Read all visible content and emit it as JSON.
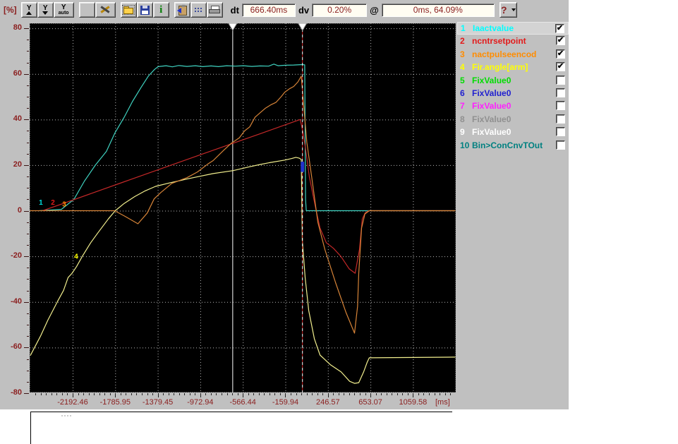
{
  "toolbar": {
    "y_unit_label": "[%]",
    "y_auto_text": "auto",
    "y_letter": "Y",
    "info_glyph": "i",
    "dt_label": "dt",
    "dt_value": "666.40ms",
    "dv_label": "dv",
    "dv_value": "0.20%",
    "at_label": "@",
    "at_value": "0ms, 64.09%",
    "help_glyph": "?"
  },
  "legend": {
    "rows": [
      {
        "num": "1",
        "label": "Iaactvalue",
        "color": "#00ffff",
        "checked": true,
        "selected": true
      },
      {
        "num": "2",
        "label": "ncntrsetpoint",
        "color": "#e31a1a",
        "checked": true,
        "selected": false
      },
      {
        "num": "3",
        "label": "nactpulseencod",
        "color": "#ff8c00",
        "checked": true,
        "selected": false
      },
      {
        "num": "4",
        "label": "Fir.angle[arm]",
        "color": "#ffff00",
        "checked": true,
        "selected": false
      },
      {
        "num": "5",
        "label": "FixValue0",
        "color": "#00dd00",
        "checked": false,
        "selected": false
      },
      {
        "num": "6",
        "label": "FixValue0",
        "color": "#2020d0",
        "checked": false,
        "selected": false
      },
      {
        "num": "7",
        "label": "FixValue0",
        "color": "#ff20ff",
        "checked": false,
        "selected": false
      },
      {
        "num": "8",
        "label": "FixValue0",
        "color": "#909090",
        "checked": false,
        "selected": false
      },
      {
        "num": "9",
        "label": "FixValue0",
        "color": "#ffffff",
        "checked": false,
        "selected": false
      },
      {
        "num": "10",
        "label": "Bin>ConCnvTOut",
        "color": "#008080",
        "checked": false,
        "selected": false
      }
    ]
  },
  "chart_data": {
    "type": "line",
    "x_unit": "[ms]",
    "y_unit": "[%]",
    "xlim": [
      -2603.6,
      1468.2
    ],
    "ylim": [
      -79.7,
      82.2
    ],
    "grid": true,
    "xticks": [
      {
        "t": -2192.46,
        "label": "-2192.46"
      },
      {
        "t": -1785.95,
        "label": "-1785.95"
      },
      {
        "t": -1379.45,
        "label": "-1379.45"
      },
      {
        "t": -972.94,
        "label": "-972.94"
      },
      {
        "t": -566.44,
        "label": "-566.44"
      },
      {
        "t": -159.94,
        "label": "-159.94"
      },
      {
        "t": 246.57,
        "label": "246.57"
      },
      {
        "t": 653.07,
        "label": "653.07"
      },
      {
        "t": 1059.58,
        "label": "1059.58"
      }
    ],
    "yticks": [
      80,
      60,
      40,
      20,
      0,
      -20,
      -40,
      -60,
      -80
    ],
    "minor_x_step": 50.813,
    "minor_y_step": 5,
    "cursors": [
      {
        "t": -666.4,
        "type": "solid"
      },
      {
        "t": 0,
        "type": "dashed",
        "marker": {
          "v_top": 21.5,
          "v_bottom": 17,
          "color": "#2233cc"
        }
      }
    ],
    "cursor_readouts": {
      "dt": "666.40ms",
      "dv": "0.20%",
      "at": "0ms, 64.09%"
    },
    "markers": [
      {
        "label": "1",
        "color": "#00e0e0",
        "t": -2496,
        "v": 2.6
      },
      {
        "label": "2",
        "color": "#e31a1a",
        "t": -2381,
        "v": 2.6
      },
      {
        "label": "3",
        "color": "#ff8c00",
        "t": -2273,
        "v": 1.8
      },
      {
        "label": "4",
        "color": "#ffff00",
        "t": -2159,
        "v": -21
      }
    ],
    "series": [
      {
        "name": "Iaactvalue",
        "color": "#3fd2c0",
        "points": [
          [
            -2512,
            0
          ],
          [
            -2300,
            0.6
          ],
          [
            -2180,
            5
          ],
          [
            -2080,
            13
          ],
          [
            -1975,
            20
          ],
          [
            -1870,
            26
          ],
          [
            -1790,
            34
          ],
          [
            -1700,
            41
          ],
          [
            -1620,
            48
          ],
          [
            -1540,
            54
          ],
          [
            -1470,
            59
          ],
          [
            -1410,
            62
          ],
          [
            -1375,
            63.2
          ],
          [
            -1300,
            63.6
          ],
          [
            -1240,
            63.1
          ],
          [
            -1180,
            63.7
          ],
          [
            -1100,
            63.3
          ],
          [
            -1020,
            63.6
          ],
          [
            -950,
            63.2
          ],
          [
            -870,
            63.5
          ],
          [
            -800,
            63.2
          ],
          [
            -720,
            63.6
          ],
          [
            -640,
            63.4
          ],
          [
            -560,
            63.6
          ],
          [
            -480,
            63.3
          ],
          [
            -400,
            63.5
          ],
          [
            -320,
            63.4
          ],
          [
            -270,
            64.3
          ],
          [
            -230,
            63.6
          ],
          [
            -160,
            63.8
          ],
          [
            -80,
            63.9
          ],
          [
            0,
            64.1
          ],
          [
            25,
            64
          ],
          [
            33,
            5
          ],
          [
            40,
            0
          ],
          [
            1465,
            0
          ]
        ]
      },
      {
        "name": "Fir.angle[arm]",
        "color": "#f2ef8e",
        "points": [
          [
            -2597,
            -63.5
          ],
          [
            -2500,
            -55
          ],
          [
            -2430,
            -48
          ],
          [
            -2337,
            -39.8
          ],
          [
            -2280,
            -35
          ],
          [
            -2236,
            -29.3
          ],
          [
            -2200,
            -27.5
          ],
          [
            -2155,
            -24.5
          ],
          [
            -2100,
            -20
          ],
          [
            -2020,
            -14
          ],
          [
            -1953,
            -9.8
          ],
          [
            -1850,
            -3.5
          ],
          [
            -1785,
            0
          ],
          [
            -1700,
            3.2
          ],
          [
            -1600,
            6.2
          ],
          [
            -1500,
            8.7
          ],
          [
            -1400,
            10.7
          ],
          [
            -1265,
            12.2
          ],
          [
            -1100,
            13.9
          ],
          [
            -1000,
            14.9
          ],
          [
            -850,
            16.3
          ],
          [
            -659,
            17.6
          ],
          [
            -500,
            19.3
          ],
          [
            -400,
            20.3
          ],
          [
            -300,
            21.2
          ],
          [
            -166,
            22.2
          ],
          [
            -100,
            22.9
          ],
          [
            -60,
            23.4
          ],
          [
            -30,
            23.1
          ],
          [
            -8,
            22.5
          ],
          [
            2,
            -13
          ],
          [
            29,
            -29.2
          ],
          [
            63,
            -43.8
          ],
          [
            117,
            -56.2
          ],
          [
            171,
            -63.3
          ],
          [
            272,
            -67.6
          ],
          [
            373,
            -70.7
          ],
          [
            454,
            -74.8
          ],
          [
            501,
            -75.7
          ],
          [
            541,
            -75.4
          ],
          [
            588,
            -70.7
          ],
          [
            622,
            -66.4
          ],
          [
            642,
            -64.5
          ],
          [
            1465,
            -64.2
          ]
        ]
      },
      {
        "name": "ncntrsetpoint",
        "color": "#c42828",
        "points": [
          [
            -2480,
            0
          ],
          [
            -2300,
            2.9
          ],
          [
            -2000,
            7.8
          ],
          [
            -1700,
            12.7
          ],
          [
            -1380,
            17.9
          ],
          [
            -1000,
            24.1
          ],
          [
            -679,
            29.3
          ],
          [
            -400,
            33.8
          ],
          [
            -166,
            37.6
          ],
          [
            -18,
            40
          ],
          [
            10,
            34
          ],
          [
            40,
            25
          ],
          [
            69,
            15
          ],
          [
            130,
            1
          ],
          [
            171,
            -7.6
          ],
          [
            231,
            -14
          ],
          [
            300,
            -16.5
          ],
          [
            370,
            -20
          ],
          [
            450,
            -25.5
          ],
          [
            507,
            -27.4
          ],
          [
            548,
            -17
          ],
          [
            575,
            -3.6
          ],
          [
            602,
            -1
          ],
          [
            636,
            0
          ],
          [
            1465,
            0
          ]
        ]
      },
      {
        "name": "nactpulseencod",
        "color": "#d78438",
        "points": [
          [
            -2600,
            0
          ],
          [
            -1791,
            0
          ],
          [
            -1690,
            -2.5
          ],
          [
            -1569,
            -5.7
          ],
          [
            -1480,
            -1
          ],
          [
            -1414,
            5.2
          ],
          [
            -1350,
            8
          ],
          [
            -1245,
            12
          ],
          [
            -1100,
            14.5
          ],
          [
            -1000,
            17
          ],
          [
            -900,
            20.5
          ],
          [
            -850,
            22
          ],
          [
            -750,
            26.5
          ],
          [
            -679,
            29.5
          ],
          [
            -600,
            32
          ],
          [
            -550,
            35
          ],
          [
            -500,
            36.8
          ],
          [
            -450,
            41
          ],
          [
            -400,
            43
          ],
          [
            -350,
            45
          ],
          [
            -300,
            46.4
          ],
          [
            -250,
            47.5
          ],
          [
            -200,
            50
          ],
          [
            -166,
            52
          ],
          [
            -120,
            53.5
          ],
          [
            -80,
            54.5
          ],
          [
            -40,
            56.5
          ],
          [
            -8,
            59
          ],
          [
            12,
            48
          ],
          [
            45,
            30
          ],
          [
            91,
            15
          ],
          [
            150,
            -5
          ],
          [
            218,
            -17
          ],
          [
            319,
            -31.4
          ],
          [
            420,
            -44.7
          ],
          [
            501,
            -53.7
          ],
          [
            530,
            -42
          ],
          [
            541,
            -27.4
          ],
          [
            568,
            -7.6
          ],
          [
            600,
            -1.4
          ],
          [
            642,
            0
          ],
          [
            1465,
            0
          ]
        ]
      }
    ]
  }
}
